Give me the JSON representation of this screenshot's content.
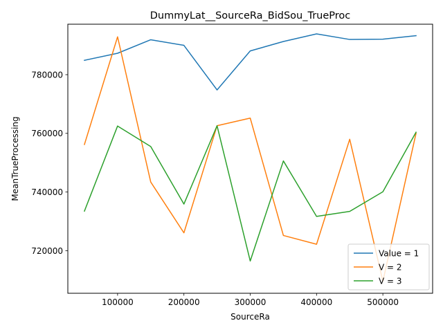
{
  "chart_data": {
    "type": "line",
    "title": "DummyLat__SourceRa_BidSou_TrueProc",
    "xlabel": "SourceRa",
    "ylabel": "MeanTrueProcessing",
    "x": [
      50000,
      100000,
      150000,
      200000,
      250000,
      300000,
      350000,
      400000,
      450000,
      500000,
      550000
    ],
    "xlim": [
      25000,
      575000
    ],
    "ylim": [
      705500,
      797200
    ],
    "xticks": [
      100000,
      200000,
      300000,
      400000,
      500000
    ],
    "xtick_labels": [
      "100000",
      "200000",
      "300000",
      "400000",
      "500000"
    ],
    "yticks": [
      720000,
      740000,
      760000,
      780000
    ],
    "ytick_labels": [
      "720000",
      "740000",
      "760000",
      "780000"
    ],
    "grid": false,
    "legend_position": "lower-right",
    "series": [
      {
        "name": "Value = 1",
        "color": "#1f77b4",
        "values": [
          784900,
          787300,
          791900,
          790000,
          774800,
          788100,
          791300,
          793900,
          792000,
          792100,
          793300
        ]
      },
      {
        "name": "V = 2",
        "color": "#ff7f0e",
        "values": [
          756200,
          792900,
          743400,
          726100,
          762600,
          765200,
          725200,
          722200,
          758000,
          709600,
          760000
        ]
      },
      {
        "name": "V = 3",
        "color": "#2ca02c",
        "values": [
          733500,
          762500,
          755500,
          735900,
          762600,
          716500,
          750600,
          731700,
          733400,
          740100,
          760400
        ]
      }
    ]
  }
}
